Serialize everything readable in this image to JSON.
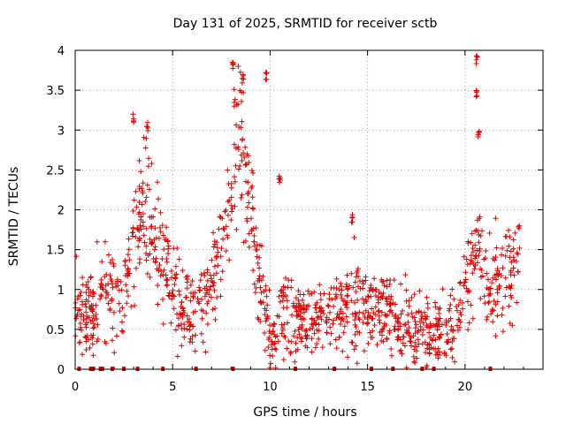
{
  "chart_data": {
    "type": "scatter",
    "title": "Day 131 of 2025, SRMTID for receiver sctb",
    "xlabel": "GPS time / hours",
    "ylabel": "SRMTID / TECUs",
    "xlim": [
      0,
      24
    ],
    "ylim": [
      0,
      4
    ],
    "xticks": [
      0,
      5,
      10,
      15,
      20
    ],
    "xtick_labels": [
      "0",
      "5",
      "10",
      "15",
      "20"
    ],
    "yticks": [
      0,
      0.5,
      1,
      1.5,
      2,
      2.5,
      3,
      3.5,
      4
    ],
    "ytick_labels": [
      "0",
      "0.5",
      "1",
      "1.5",
      "2",
      "2.5",
      "3",
      "3.5",
      "4"
    ],
    "marker": "+",
    "color": "#e00000",
    "grid": true,
    "series": [
      {
        "name": "SRMTID",
        "trend_x": [
          0.0,
          0.5,
          1.0,
          1.5,
          2.0,
          2.5,
          3.0,
          3.3,
          3.6,
          3.9,
          4.2,
          4.6,
          5.0,
          5.5,
          6.0,
          6.5,
          7.0,
          7.5,
          7.8,
          8.1,
          8.4,
          8.7,
          9.0,
          9.3,
          9.6,
          9.9,
          10.2,
          10.6,
          11.0,
          11.5,
          12.0,
          13.0,
          14.0,
          15.0,
          16.0,
          17.0,
          17.5,
          18.0,
          18.5,
          19.0,
          19.5,
          20.0,
          20.3,
          20.6,
          20.9,
          21.2,
          21.5,
          22.0,
          22.5,
          22.8
        ],
        "trend_y": [
          0.8,
          0.6,
          0.75,
          0.95,
          1.0,
          0.9,
          1.7,
          2.0,
          2.1,
          1.9,
          1.7,
          1.3,
          1.05,
          0.8,
          0.65,
          0.8,
          1.1,
          1.4,
          2.0,
          2.5,
          2.9,
          2.5,
          2.0,
          1.4,
          1.0,
          0.45,
          0.35,
          0.6,
          0.75,
          0.65,
          0.55,
          0.75,
          0.8,
          0.78,
          0.7,
          0.55,
          0.5,
          0.48,
          0.42,
          0.5,
          0.65,
          0.9,
          1.4,
          1.6,
          1.35,
          1.1,
          1.05,
          1.15,
          1.3,
          1.4
        ],
        "spread": 0.35,
        "point_count": 1300,
        "peaks": [
          {
            "x": 3.0,
            "y": 3.2
          },
          {
            "x": 3.7,
            "y": 3.1
          },
          {
            "x": 8.1,
            "y": 3.85
          },
          {
            "x": 8.6,
            "y": 3.7
          },
          {
            "x": 9.8,
            "y": 3.75
          },
          {
            "x": 20.6,
            "y": 3.95
          },
          {
            "x": 20.6,
            "y": 3.5
          },
          {
            "x": 20.7,
            "y": 3.0
          },
          {
            "x": 14.2,
            "y": 1.95
          },
          {
            "x": 10.5,
            "y": 2.45
          }
        ]
      }
    ],
    "dropout_markers_x": [
      0.2,
      0.8,
      0.9,
      1.3,
      1.4,
      1.9,
      2.5,
      3.2,
      4.5,
      6.2,
      8.1,
      11.3,
      13.3,
      15.2,
      16.3,
      17.8,
      18.4,
      21.3
    ]
  }
}
